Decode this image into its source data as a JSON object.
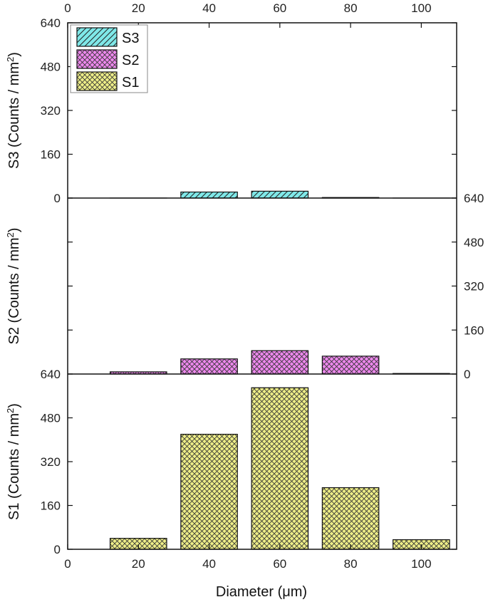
{
  "chart_data": {
    "type": "bar",
    "x_axis": {
      "label": "Diameter (μm)",
      "range": [
        0,
        110
      ],
      "ticks": [
        0,
        20,
        40,
        60,
        80,
        100
      ],
      "top_ticks": [
        0,
        20,
        40,
        60,
        80,
        100
      ]
    },
    "bar_centers": [
      20,
      40,
      60,
      80,
      100
    ],
    "bar_width": 16,
    "legend": {
      "position": "top-left",
      "entries": [
        "S3",
        "S2",
        "S1"
      ]
    },
    "panels": [
      {
        "name": "S3",
        "ylabel": "S3 (Counts / mm",
        "ylabel_sup": "2",
        "ylabel_end": ")",
        "ylim": [
          0,
          640
        ],
        "yticks": [
          0,
          160,
          320,
          480,
          640
        ],
        "tick_side": "left",
        "fill": "#7fe8e8",
        "pattern": "diagonal",
        "values": [
          0,
          22,
          25,
          2,
          0
        ]
      },
      {
        "name": "S2",
        "ylabel": "S2 (Counts / mm",
        "ylabel_sup": "2",
        "ylabel_end": ")",
        "ylim": [
          0,
          640
        ],
        "yticks": [
          0,
          160,
          320,
          480,
          640
        ],
        "tick_side": "right",
        "fill": "#ee88ee",
        "pattern": "crosshatch",
        "values": [
          8,
          55,
          85,
          65,
          2
        ]
      },
      {
        "name": "S1",
        "ylabel": "S1 (Counts / mm",
        "ylabel_sup": "2",
        "ylabel_end": ")",
        "ylim": [
          0,
          640
        ],
        "yticks": [
          0,
          160,
          320,
          480,
          640
        ],
        "tick_side": "left",
        "fill": "#eeee88",
        "pattern": "crosshatch",
        "values": [
          40,
          420,
          590,
          225,
          35
        ]
      }
    ]
  }
}
